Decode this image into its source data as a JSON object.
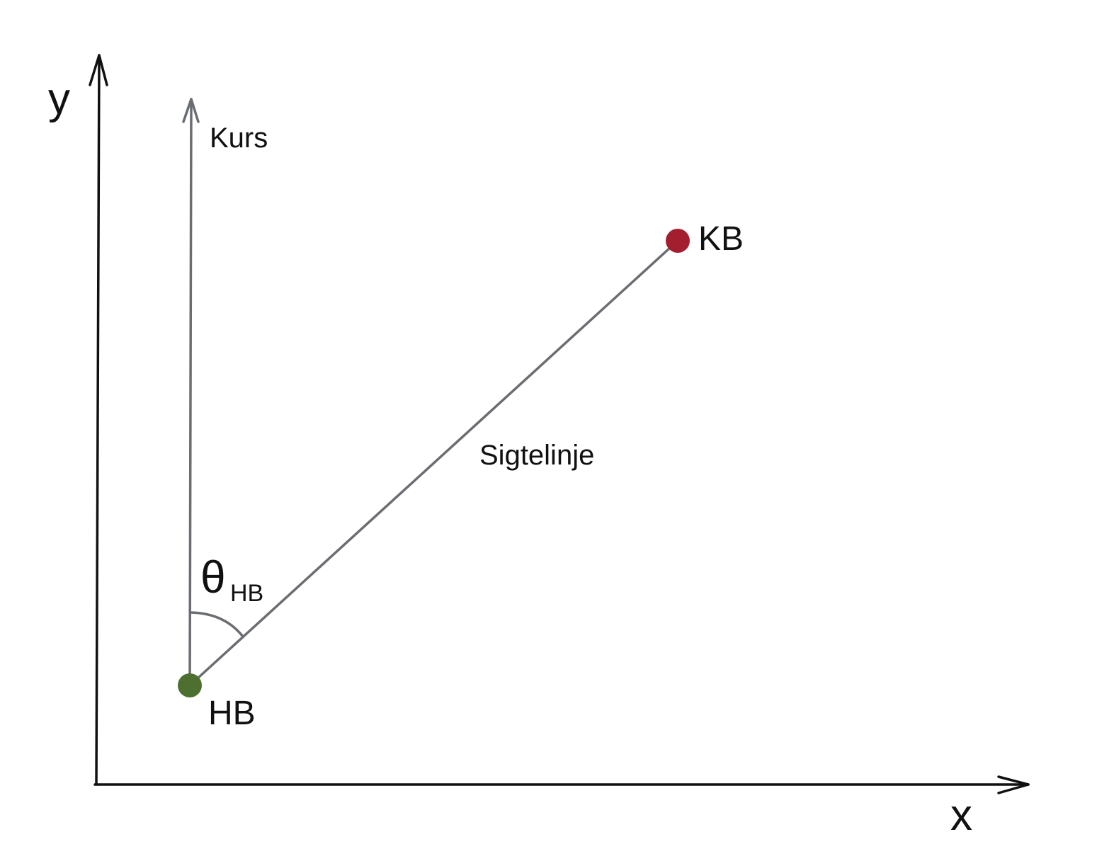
{
  "axes": {
    "x_label": "x",
    "y_label": "y"
  },
  "heading_label": "Kurs",
  "line_of_sight_label": "Sigtelinje",
  "angle": {
    "symbol": "θ",
    "subscript": "HB"
  },
  "points": {
    "hb": {
      "label": "HB",
      "color": "#4d7030"
    },
    "kb": {
      "label": "KB",
      "color": "#a31f30"
    }
  },
  "colors": {
    "axis": "#111111",
    "line": "#6a6d71"
  }
}
